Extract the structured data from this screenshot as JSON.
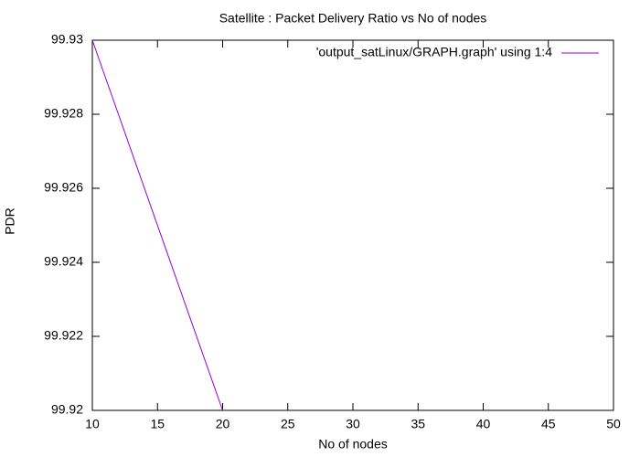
{
  "chart_data": {
    "type": "line",
    "title": "Satellite : Packet Delivery Ratio vs No of nodes",
    "x_label": "No of nodes",
    "y_label": "PDR",
    "x": [
      10,
      20
    ],
    "series": [
      {
        "name": "'output_satLinux/GRAPH.graph' using 1:4",
        "color": "#9400d3",
        "values": [
          99.93,
          99.92
        ]
      }
    ],
    "xlim": [
      10,
      50
    ],
    "ylim": [
      99.92,
      99.93
    ],
    "xticks": [
      10,
      15,
      20,
      25,
      30,
      35,
      40,
      45,
      50
    ],
    "yticks": [
      99.92,
      99.922,
      99.924,
      99.926,
      99.928,
      99.93
    ],
    "grid": false,
    "legend": "top-right"
  }
}
